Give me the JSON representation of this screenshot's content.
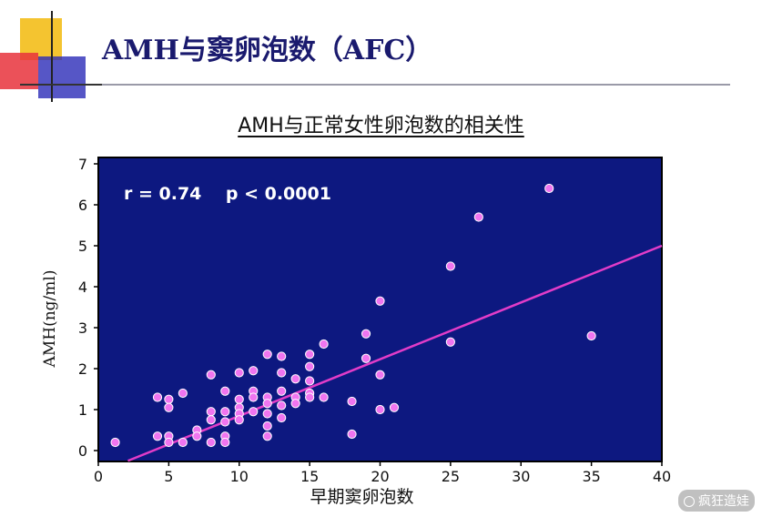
{
  "slide": {
    "title": "AMH与窦卵泡数（AFC）"
  },
  "colors": {
    "plot_background": "#0d1880",
    "marker": "#f075f0",
    "marker_edge": "#ffffff",
    "regression_line": "#e23cc8",
    "title_text": "#1a1a6e",
    "deco_yellow": "#f4c430",
    "deco_red": "#e8323c",
    "deco_blue": "#2c2cb8"
  },
  "chart_data": {
    "type": "scatter",
    "title": "AMH与正常女性卵泡数的相关性",
    "xlabel": "早期窦卵泡数",
    "ylabel": "AMH(ng/ml)",
    "xlim": [
      0,
      40
    ],
    "ylim": [
      -0.25,
      7
    ],
    "x_ticks": [
      0,
      5,
      10,
      15,
      20,
      25,
      30,
      35,
      40
    ],
    "y_ticks": [
      0,
      1,
      2,
      3,
      4,
      5,
      6,
      7
    ],
    "annotation": "r = 0.74    p < 0.0001",
    "regression": {
      "x_start": 2.1,
      "x_end": 40,
      "y_start": -0.25,
      "y_end": 5.0
    },
    "grid": false,
    "legend": "none",
    "points": [
      [
        1.2,
        0.2
      ],
      [
        4.2,
        0.35
      ],
      [
        4.2,
        1.3
      ],
      [
        5,
        1.25
      ],
      [
        5,
        1.05
      ],
      [
        5,
        0.35
      ],
      [
        5,
        0.2
      ],
      [
        6,
        1.4
      ],
      [
        6,
        0.2
      ],
      [
        7,
        0.5
      ],
      [
        7,
        0.35
      ],
      [
        8,
        1.85
      ],
      [
        8,
        0.95
      ],
      [
        8,
        0.75
      ],
      [
        8,
        0.2
      ],
      [
        9,
        1.45
      ],
      [
        9,
        0.95
      ],
      [
        9,
        0.7
      ],
      [
        9,
        0.35
      ],
      [
        9,
        0.2
      ],
      [
        10,
        1.9
      ],
      [
        10,
        1.25
      ],
      [
        10,
        1.05
      ],
      [
        10,
        0.9
      ],
      [
        10,
        0.75
      ],
      [
        11,
        1.95
      ],
      [
        11,
        1.45
      ],
      [
        11,
        1.3
      ],
      [
        11,
        0.95
      ],
      [
        12,
        2.35
      ],
      [
        12,
        1.3
      ],
      [
        12,
        1.15
      ],
      [
        12,
        0.9
      ],
      [
        12,
        0.6
      ],
      [
        12,
        0.35
      ],
      [
        13,
        2.3
      ],
      [
        13,
        1.9
      ],
      [
        13,
        1.45
      ],
      [
        13,
        1.1
      ],
      [
        13,
        0.8
      ],
      [
        14,
        1.75
      ],
      [
        14,
        1.3
      ],
      [
        14,
        1.15
      ],
      [
        15,
        2.35
      ],
      [
        15,
        2.05
      ],
      [
        15,
        1.7
      ],
      [
        15,
        1.4
      ],
      [
        15,
        1.3
      ],
      [
        16,
        2.6
      ],
      [
        16,
        1.3
      ],
      [
        18,
        1.2
      ],
      [
        18,
        0.4
      ],
      [
        19,
        2.85
      ],
      [
        19,
        2.25
      ],
      [
        20,
        3.65
      ],
      [
        20,
        1.85
      ],
      [
        20,
        1.0
      ],
      [
        21,
        1.05
      ],
      [
        25,
        4.5
      ],
      [
        25,
        2.65
      ],
      [
        27,
        5.7
      ],
      [
        32,
        6.4
      ],
      [
        35,
        2.8
      ]
    ]
  },
  "watermark": {
    "text": "疯狂造娃"
  }
}
